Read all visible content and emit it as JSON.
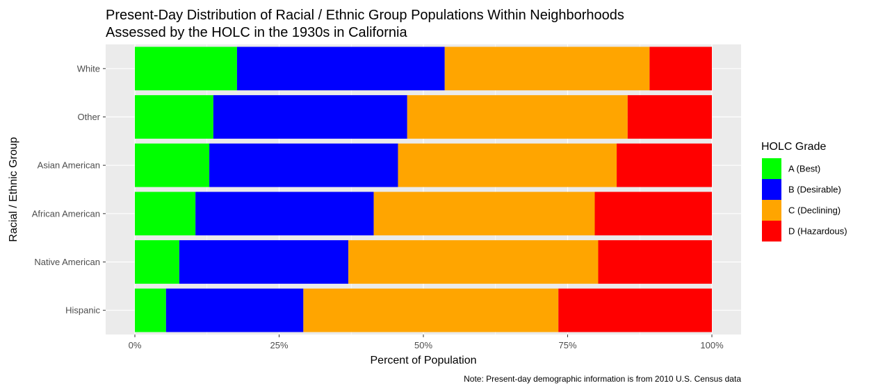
{
  "chart_data": {
    "type": "bar",
    "orientation": "horizontal",
    "stacked": "percent",
    "title": "Present-Day Distribution of Racial / Ethnic Group Populations Within Neighborhoods",
    "subtitle": "Assessed by the HOLC in the 1930s in California",
    "xlabel": "Percent of Population",
    "ylabel": "Racial / Ethnic Group",
    "caption": "Note: Present-day demographic information is from 2010 U.S. Census data",
    "xlim": [
      0,
      1
    ],
    "xticks": [
      {
        "value": 0,
        "label": "0%"
      },
      {
        "value": 0.25,
        "label": "25%"
      },
      {
        "value": 0.5,
        "label": "50%"
      },
      {
        "value": 0.75,
        "label": "75%"
      },
      {
        "value": 1,
        "label": "100%"
      }
    ],
    "categories": [
      "White",
      "Other",
      "Asian American",
      "African American",
      "Native American",
      "Hispanic"
    ],
    "series": [
      {
        "name": "A (Best)",
        "color": "#00ff00",
        "values": [
          0.177,
          0.136,
          0.129,
          0.105,
          0.077,
          0.054
        ]
      },
      {
        "name": "B (Desirable)",
        "color": "#0000ff",
        "values": [
          0.36,
          0.336,
          0.327,
          0.309,
          0.293,
          0.238
        ]
      },
      {
        "name": "C (Declining)",
        "color": "#ffa500",
        "values": [
          0.355,
          0.382,
          0.379,
          0.383,
          0.433,
          0.442
        ]
      },
      {
        "name": "D (Hazardous)",
        "color": "#ff0000",
        "values": [
          0.108,
          0.146,
          0.165,
          0.203,
          0.197,
          0.266
        ]
      }
    ],
    "legend": {
      "title": "HOLC Grade",
      "position": "right"
    },
    "grid": true,
    "panel_background": "#ebebeb",
    "grid_color": "#ffffff"
  }
}
